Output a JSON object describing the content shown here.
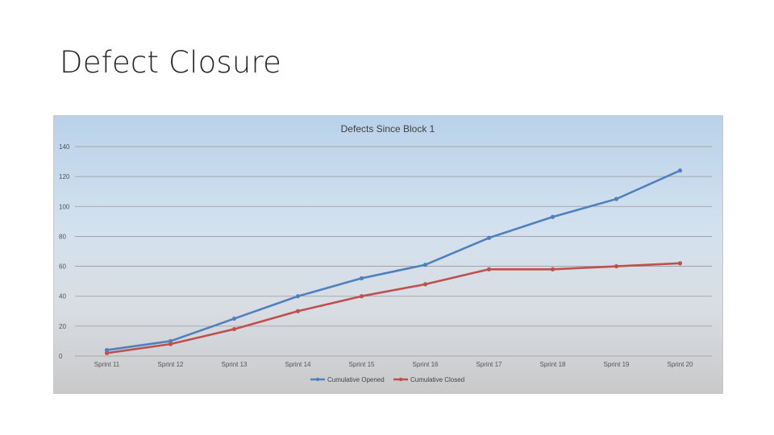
{
  "slide": {
    "title": "Defect Closure"
  },
  "chart_data": {
    "type": "line",
    "title": "Defects Since Block 1",
    "xlabel": "",
    "ylabel": "",
    "ylim": [
      0,
      140
    ],
    "yticks": [
      0,
      20,
      40,
      60,
      80,
      100,
      120,
      140
    ],
    "categories": [
      "Sprint 11",
      "Sprint 12",
      "Sprint 13",
      "Sprint 14",
      "Sprint 15",
      "Sprint 16",
      "Sprint 17",
      "Sprint 18",
      "Sprint 19",
      "Sprint 20"
    ],
    "series": [
      {
        "name": "Cumulative Opened",
        "color": "#4f81bd",
        "values": [
          4,
          10,
          25,
          40,
          52,
          61,
          79,
          93,
          105,
          124
        ]
      },
      {
        "name": "Cumulative Closed",
        "color": "#c0504d",
        "values": [
          2,
          8,
          18,
          30,
          40,
          48,
          58,
          58,
          60,
          62
        ]
      }
    ],
    "grid": true,
    "legend": "bottom"
  }
}
